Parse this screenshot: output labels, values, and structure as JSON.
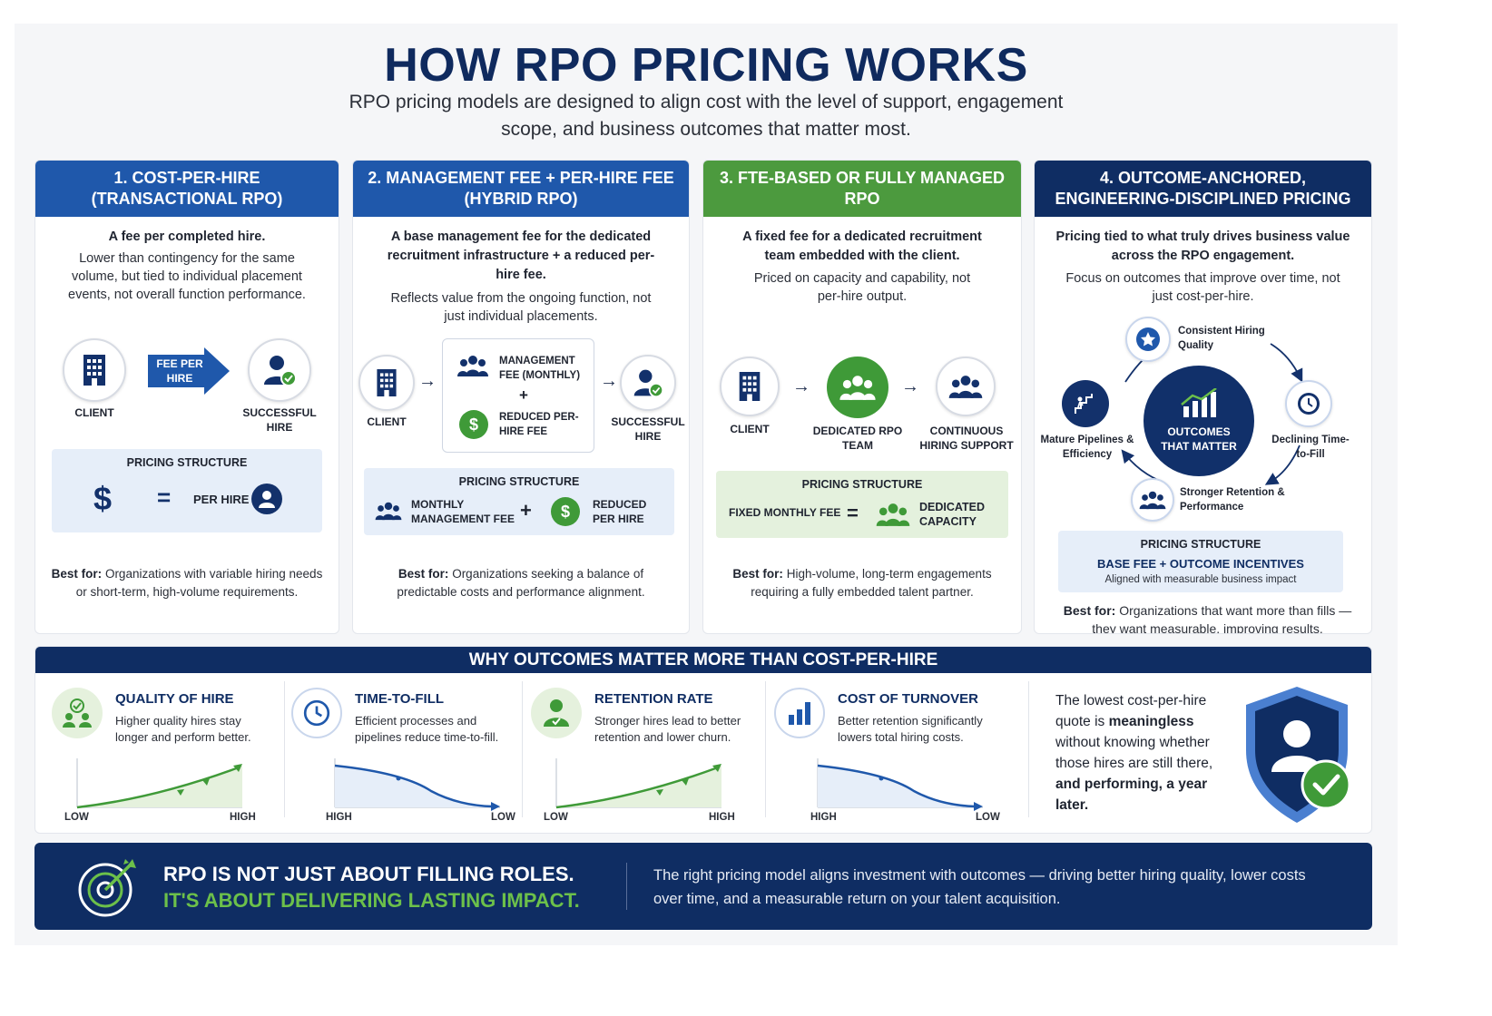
{
  "title": "HOW RPO PRICING WORKS",
  "subtitle": "RPO pricing models are designed to align cost with the level of support, engagement scope, and business outcomes that matter most.",
  "colors": {
    "navy": "#0f2d63",
    "blue": "#1f58ab",
    "green": "#4c9a3e",
    "light_blue": "#e6eef9",
    "light_green": "#e4f1dd"
  },
  "cards": [
    {
      "head": "1. COST-PER-HIRE (TRANSACTIONAL RPO)",
      "lead": "A fee per completed hire.",
      "desc": "Lower than contingency for the same volume, but tied to individual placement events, not overall function performance.",
      "flow": {
        "client": "CLIENT",
        "fee": "FEE PER HIRE",
        "hire": "SUCCESSFUL HIRE"
      },
      "pricing": {
        "title": "PRICING STRUCTURE",
        "symbol": "$",
        "equals": "=",
        "result": "PER HIRE"
      },
      "best_label": "Best for:",
      "best_text": "Organizations with variable hiring needs or short-term, high-volume requirements."
    },
    {
      "head": "2. MANAGEMENT FEE + PER-HIRE FEE (HYBRID RPO)",
      "lead": "A base management fee for the dedicated recruitment infrastructure + a reduced per-hire fee.",
      "desc": "Reflects value from the ongoing function, not just individual placements.",
      "flow": {
        "client": "CLIENT",
        "mgmt": "MANAGEMENT FEE (MONTHLY)",
        "plus": "+",
        "reduced": "REDUCED PER-HIRE FEE",
        "hire": "SUCCESSFUL HIRE"
      },
      "pricing": {
        "title": "PRICING STRUCTURE",
        "left": "MONTHLY MANAGEMENT FEE",
        "plus": "+",
        "right": "REDUCED PER HIRE"
      },
      "best_label": "Best for:",
      "best_text": "Organizations seeking a balance of predictable costs and performance alignment."
    },
    {
      "head": "3. FTE-BASED OR FULLY MANAGED RPO",
      "lead": "A fixed fee for a dedicated recruitment team embedded with the client.",
      "desc": "Priced on capacity and capability, not per-hire output.",
      "flow": {
        "client": "CLIENT",
        "team": "DEDICATED RPO TEAM",
        "support": "CONTINUOUS HIRING SUPPORT"
      },
      "pricing": {
        "title": "PRICING STRUCTURE",
        "left": "FIXED MONTHLY FEE",
        "equals": "=",
        "right": "DEDICATED CAPACITY"
      },
      "best_label": "Best for:",
      "best_text": "High-volume, long-term engagements requiring a fully embedded talent partner."
    },
    {
      "head": "4. OUTCOME-ANCHORED, ENGINEERING-DISCIPLINED PRICING",
      "lead": "Pricing tied to what truly drives business value across the RPO engagement.",
      "desc": "Focus on outcomes that improve over time, not just cost-per-hire.",
      "cycle": {
        "center": "OUTCOMES THAT MATTER",
        "top": "Consistent Hiring Quality",
        "right": "Declining Time-to-Fill",
        "bottom": "Stronger Retention & Performance",
        "left": "Mature Pipelines & Efficiency"
      },
      "pricing": {
        "title": "PRICING STRUCTURE",
        "main": "BASE FEE + OUTCOME INCENTIVES",
        "sub": "Aligned with measurable business impact"
      },
      "best_label": "Best for:",
      "best_text": "Organizations that want more than fills — they want measurable, improving results."
    }
  ],
  "why": {
    "head": "WHY OUTCOMES MATTER MORE THAN COST-PER-HIRE",
    "metrics": [
      {
        "title": "QUALITY OF HIRE",
        "desc": "Higher quality hires stay longer and perform better.",
        "axis_start": "LOW",
        "axis_end": "HIGH",
        "trend": "up"
      },
      {
        "title": "TIME-TO-FILL",
        "desc": "Efficient processes and pipelines reduce time-to-fill.",
        "axis_start": "HIGH",
        "axis_end": "LOW",
        "trend": "down"
      },
      {
        "title": "RETENTION RATE",
        "desc": "Stronger hires lead to better retention and lower churn.",
        "axis_start": "LOW",
        "axis_end": "HIGH",
        "trend": "up"
      },
      {
        "title": "COST OF TURNOVER",
        "desc": "Better retention significantly lowers total hiring costs.",
        "axis_start": "HIGH",
        "axis_end": "LOW",
        "trend": "down"
      }
    ],
    "quote_a": "The lowest cost-per-hire quote is ",
    "quote_b": "meaningless",
    "quote_c": " without knowing whether those hires are still there, ",
    "quote_d": "and performing, a year later."
  },
  "banner": {
    "line1": "RPO IS NOT JUST ABOUT FILLING ROLES.",
    "line2": "IT'S ABOUT DELIVERING LASTING IMPACT.",
    "text": "The right pricing model aligns investment with outcomes — driving better hiring quality, lower costs over time, and a measurable return on your talent acquisition."
  }
}
